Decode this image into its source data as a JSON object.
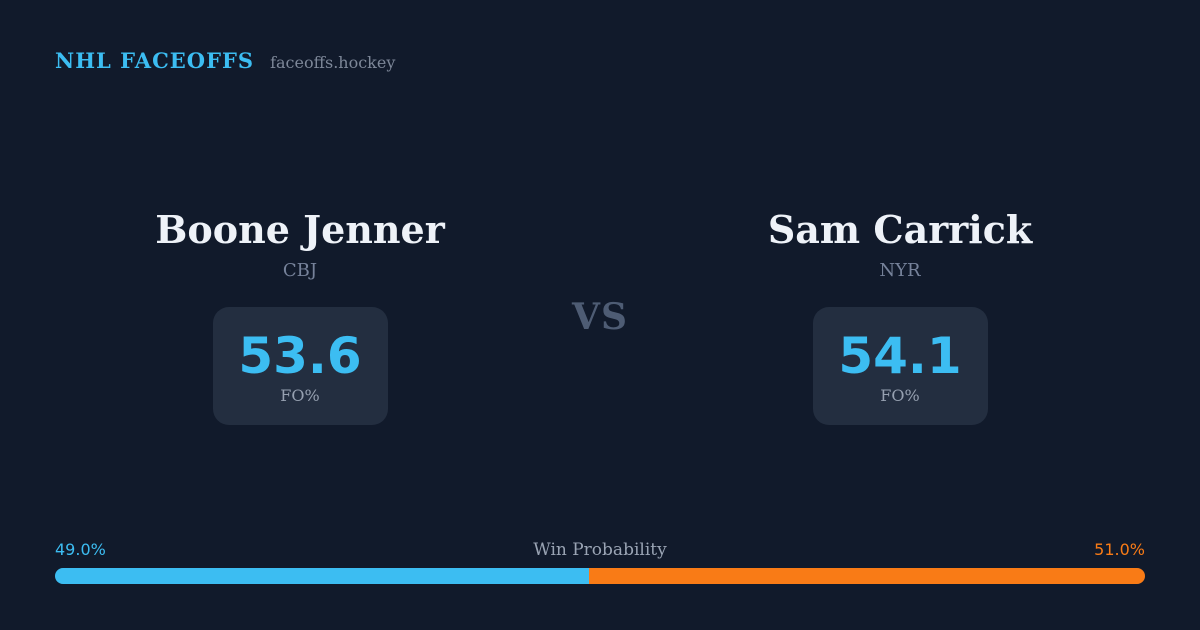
{
  "header": {
    "title": "NHL FACEOFFS",
    "site": "faceoffs.hockey"
  },
  "matchup": {
    "vs_label": "VS",
    "left": {
      "name": "Boone Jenner",
      "team": "CBJ",
      "stat_value": "53.6",
      "stat_label": "FO%"
    },
    "right": {
      "name": "Sam Carrick",
      "team": "NYR",
      "stat_value": "54.1",
      "stat_label": "FO%"
    }
  },
  "win_probability": {
    "label": "Win Probability",
    "left_pct_label": "49.0%",
    "right_pct_label": "51.0%",
    "left_value": 49.0,
    "right_value": 51.0
  },
  "colors": {
    "background": "#111a2b",
    "card": "#232e40",
    "accent_blue": "#3cbdf2",
    "accent_orange": "#f97b16",
    "text_primary": "#eef2f8",
    "text_muted": "#76829a"
  },
  "chart_data": {
    "type": "bar",
    "orientation": "horizontal-stacked",
    "title": "Win Probability",
    "categories": [
      "Boone Jenner (CBJ)",
      "Sam Carrick (NYR)"
    ],
    "values": [
      49.0,
      51.0
    ],
    "unit": "%",
    "xlim": [
      0,
      100
    ],
    "colors": [
      "#3cbdf2",
      "#f97b16"
    ],
    "annotations": [
      "49.0%",
      "51.0%"
    ],
    "related_stats": {
      "Boone Jenner FO%": 53.6,
      "Sam Carrick FO%": 54.1
    },
    "legend_position": "none",
    "grid": false
  }
}
